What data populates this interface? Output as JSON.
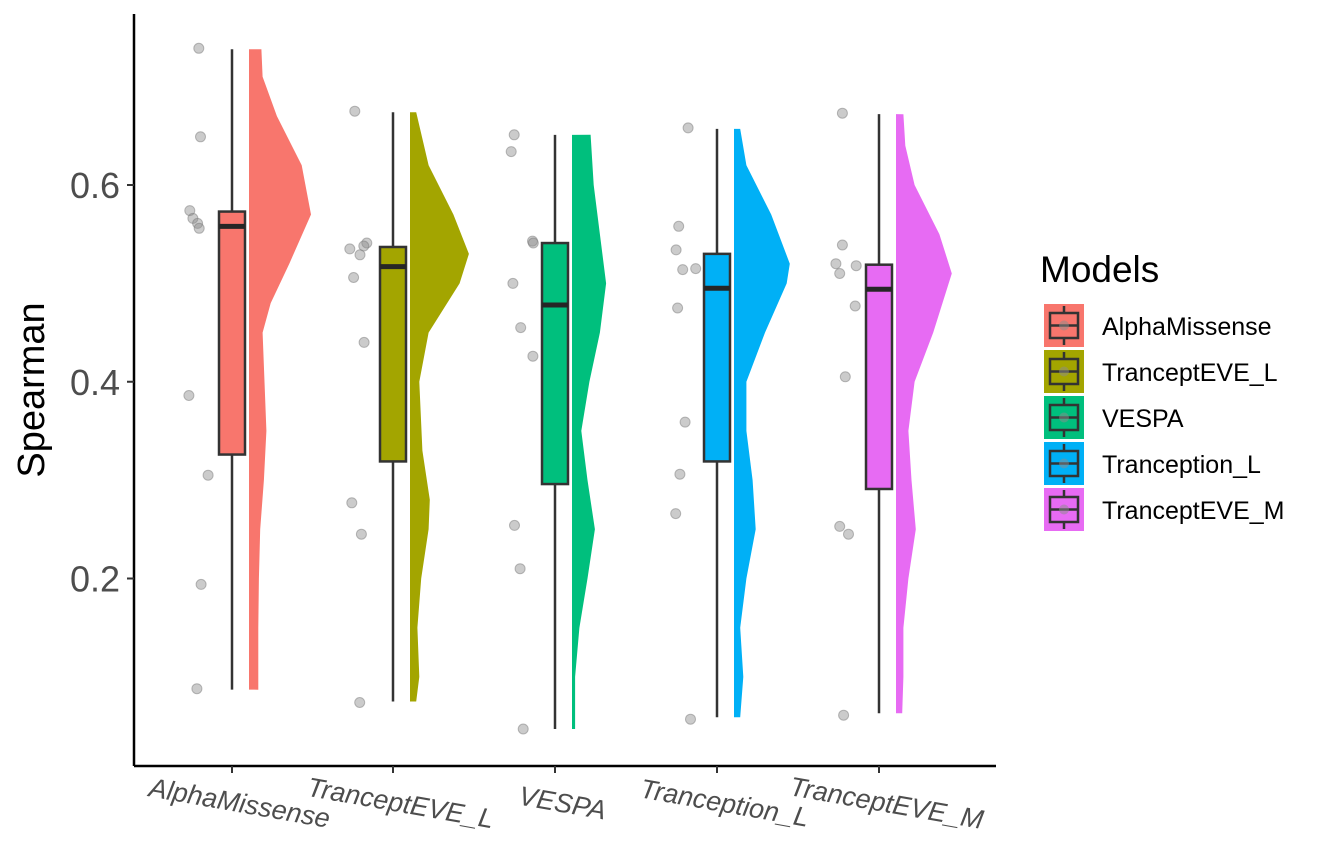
{
  "chart_data": {
    "type": "raincloud",
    "title": "",
    "xlabel": "",
    "ylabel": "Spearman",
    "ylim": [
      0.02,
      0.77
    ],
    "yticks": [
      0.2,
      0.4,
      0.6
    ],
    "ytick_labels": [
      "0.2",
      "0.4",
      "0.6"
    ],
    "categories": [
      "AlphaMissense",
      "TranceptEVE_L",
      "VESPA",
      "Tranception_L",
      "TranceptEVE_M"
    ],
    "legend": {
      "title": "Models",
      "position": "right"
    },
    "grid": false,
    "series": [
      {
        "name": "AlphaMissense",
        "color": "#F8766D",
        "box": {
          "min": 0.087,
          "q1": 0.326,
          "median": 0.558,
          "q3": 0.573,
          "max": 0.738
        },
        "density": [
          [
            0.087,
            0.15
          ],
          [
            0.15,
            0.15
          ],
          [
            0.2,
            0.16
          ],
          [
            0.25,
            0.18
          ],
          [
            0.3,
            0.24
          ],
          [
            0.35,
            0.28
          ],
          [
            0.4,
            0.25
          ],
          [
            0.45,
            0.22
          ],
          [
            0.48,
            0.35
          ],
          [
            0.52,
            0.65
          ],
          [
            0.57,
            1.0
          ],
          [
            0.62,
            0.85
          ],
          [
            0.67,
            0.45
          ],
          [
            0.71,
            0.22
          ],
          [
            0.738,
            0.2
          ]
        ],
        "points": [
          0.739,
          0.649,
          0.574,
          0.566,
          0.561,
          0.556,
          0.386,
          0.305,
          0.194,
          0.088
        ]
      },
      {
        "name": "TranceptEVE_L",
        "color": "#A3A500",
        "box": {
          "min": 0.075,
          "q1": 0.319,
          "median": 0.517,
          "q3": 0.537,
          "max": 0.674
        },
        "density": [
          [
            0.075,
            0.1
          ],
          [
            0.1,
            0.15
          ],
          [
            0.15,
            0.12
          ],
          [
            0.2,
            0.18
          ],
          [
            0.25,
            0.3
          ],
          [
            0.28,
            0.32
          ],
          [
            0.33,
            0.2
          ],
          [
            0.4,
            0.15
          ],
          [
            0.45,
            0.3
          ],
          [
            0.5,
            0.8
          ],
          [
            0.53,
            0.95
          ],
          [
            0.57,
            0.7
          ],
          [
            0.62,
            0.3
          ],
          [
            0.674,
            0.1
          ]
        ],
        "points": [
          0.675,
          0.541,
          0.538,
          0.535,
          0.529,
          0.506,
          0.44,
          0.277,
          0.245,
          0.074
        ]
      },
      {
        "name": "VESPA",
        "color": "#00BF7D",
        "box": {
          "min": 0.047,
          "q1": 0.296,
          "median": 0.478,
          "q3": 0.541,
          "max": 0.651
        },
        "density": [
          [
            0.047,
            0.05
          ],
          [
            0.1,
            0.05
          ],
          [
            0.15,
            0.12
          ],
          [
            0.2,
            0.25
          ],
          [
            0.25,
            0.37
          ],
          [
            0.3,
            0.25
          ],
          [
            0.35,
            0.15
          ],
          [
            0.4,
            0.28
          ],
          [
            0.45,
            0.45
          ],
          [
            0.5,
            0.55
          ],
          [
            0.55,
            0.45
          ],
          [
            0.6,
            0.35
          ],
          [
            0.651,
            0.3
          ]
        ],
        "points": [
          0.651,
          0.634,
          0.543,
          0.541,
          0.5,
          0.455,
          0.426,
          0.254,
          0.21,
          0.047
        ]
      },
      {
        "name": "Tranception_L",
        "color": "#00B0F6",
        "box": {
          "min": 0.059,
          "q1": 0.319,
          "median": 0.495,
          "q3": 0.53,
          "max": 0.657
        },
        "density": [
          [
            0.059,
            0.1
          ],
          [
            0.1,
            0.15
          ],
          [
            0.15,
            0.1
          ],
          [
            0.2,
            0.2
          ],
          [
            0.25,
            0.35
          ],
          [
            0.3,
            0.3
          ],
          [
            0.35,
            0.2
          ],
          [
            0.4,
            0.2
          ],
          [
            0.45,
            0.5
          ],
          [
            0.5,
            0.85
          ],
          [
            0.52,
            0.9
          ],
          [
            0.57,
            0.6
          ],
          [
            0.62,
            0.2
          ],
          [
            0.657,
            0.1
          ]
        ],
        "points": [
          0.658,
          0.558,
          0.534,
          0.515,
          0.514,
          0.475,
          0.359,
          0.306,
          0.266,
          0.057
        ]
      },
      {
        "name": "TranceptEVE_M",
        "color": "#E76BF3",
        "box": {
          "min": 0.063,
          "q1": 0.291,
          "median": 0.494,
          "q3": 0.519,
          "max": 0.672
        },
        "density": [
          [
            0.063,
            0.1
          ],
          [
            0.1,
            0.12
          ],
          [
            0.15,
            0.12
          ],
          [
            0.2,
            0.2
          ],
          [
            0.25,
            0.32
          ],
          [
            0.3,
            0.25
          ],
          [
            0.35,
            0.2
          ],
          [
            0.4,
            0.3
          ],
          [
            0.45,
            0.6
          ],
          [
            0.51,
            0.9
          ],
          [
            0.55,
            0.7
          ],
          [
            0.6,
            0.3
          ],
          [
            0.64,
            0.15
          ],
          [
            0.672,
            0.12
          ]
        ],
        "points": [
          0.673,
          0.539,
          0.52,
          0.518,
          0.51,
          0.477,
          0.405,
          0.253,
          0.245,
          0.061
        ]
      }
    ]
  }
}
